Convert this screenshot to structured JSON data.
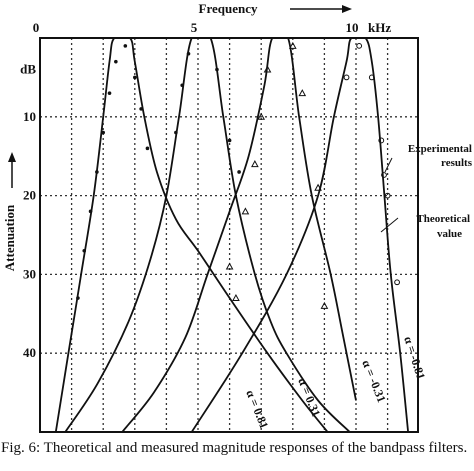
{
  "chart_data": {
    "type": "line",
    "title": "",
    "xlabel": "Frequency",
    "ylabel": "Attenuation",
    "xlim": [
      0,
      12.0
    ],
    "ylim": [
      0,
      50
    ],
    "y_inverted": true,
    "grid": true,
    "x_ticks": [
      {
        "value": 0,
        "label": "0"
      },
      {
        "value": 5,
        "label": "5"
      },
      {
        "value": 10,
        "label": "10"
      }
    ],
    "x_unit_label": "kHz",
    "y_ticks": [
      {
        "value": 0,
        "label": ""
      },
      {
        "value": 10,
        "label": "10"
      },
      {
        "value": 20,
        "label": "20"
      },
      {
        "value": 30,
        "label": "30"
      },
      {
        "value": 40,
        "label": "40"
      }
    ],
    "y_unit_label": "dB",
    "series": [
      {
        "alpha_label": "α = 0.81",
        "center": 2.6,
        "x": [
          0.5,
          0.9,
          1.3,
          1.7,
          2.0,
          2.2,
          2.35,
          2.85,
          3.0,
          3.3,
          3.7,
          4.3,
          5.0,
          6.0,
          7.2,
          8.3,
          9.1
        ],
        "y": [
          50,
          40,
          30,
          20,
          10,
          3,
          0,
          0,
          3,
          10,
          17,
          23,
          27,
          33,
          40,
          46,
          50
        ],
        "experimental_x": [
          1.2,
          1.4,
          1.6,
          1.8,
          2.0,
          2.2,
          2.4,
          2.7,
          3.0,
          3.2,
          3.4
        ],
        "experimental_y": [
          33,
          27,
          22,
          17,
          12,
          7,
          3,
          1,
          5,
          9,
          14
        ]
      },
      {
        "alpha_label": "α = 0.31",
        "center": 5.1,
        "x": [
          0.8,
          1.8,
          2.8,
          3.5,
          4.0,
          4.4,
          4.8,
          5.4,
          5.8,
          6.2,
          6.8,
          7.3,
          7.8,
          8.8,
          9.8
        ],
        "y": [
          50,
          44,
          36,
          28,
          20,
          10,
          0,
          0,
          10,
          20,
          30,
          36,
          40,
          46,
          50
        ],
        "experimental_x": [
          4.3,
          4.5,
          4.7,
          5.6,
          6.0,
          6.3
        ],
        "experimental_y": [
          12,
          6,
          2,
          4,
          13,
          17
        ]
      },
      {
        "alpha_label": "α = -0.31",
        "center": 7.6,
        "x": [
          2.6,
          3.6,
          4.6,
          5.3,
          6.0,
          6.6,
          7.1,
          7.35,
          7.85,
          8.2,
          8.6,
          9.2,
          9.6,
          10.0
        ],
        "y": [
          50,
          45,
          38,
          30,
          22,
          15,
          6,
          0,
          0,
          10,
          20,
          30,
          38,
          46
        ],
        "experimental_x": [
          6.0,
          6.5,
          6.8,
          7.0,
          7.2,
          8.0,
          8.3,
          8.8,
          9.0,
          6.2
        ],
        "experimental_y": [
          29,
          22,
          16,
          10,
          4,
          1,
          7,
          19,
          34,
          33
        ],
        "point_marker": "triangle"
      },
      {
        "alpha_label": "α = -0.81",
        "center": 10.1,
        "x": [
          4.8,
          6.4,
          7.8,
          8.8,
          9.3,
          9.7,
          9.85,
          10.3,
          10.5,
          10.7,
          10.9,
          11.1,
          11.4,
          11.65
        ],
        "y": [
          50,
          40,
          30,
          20,
          10,
          3,
          0,
          0,
          3,
          10,
          20,
          30,
          40,
          50
        ],
        "experimental_x": [
          9.7,
          10.1,
          10.5,
          10.8,
          11.0,
          11.3
        ],
        "experimental_y": [
          5,
          1,
          5,
          13,
          20,
          31
        ],
        "point_marker": "circle"
      }
    ],
    "annotations": {
      "experimental_label": [
        "Experimental",
        "results"
      ],
      "theoretical_label": [
        "Theoretical",
        "value"
      ]
    }
  },
  "caption": "Fig. 6: Theoretical and measured magnitude responses of the bandpass filters."
}
